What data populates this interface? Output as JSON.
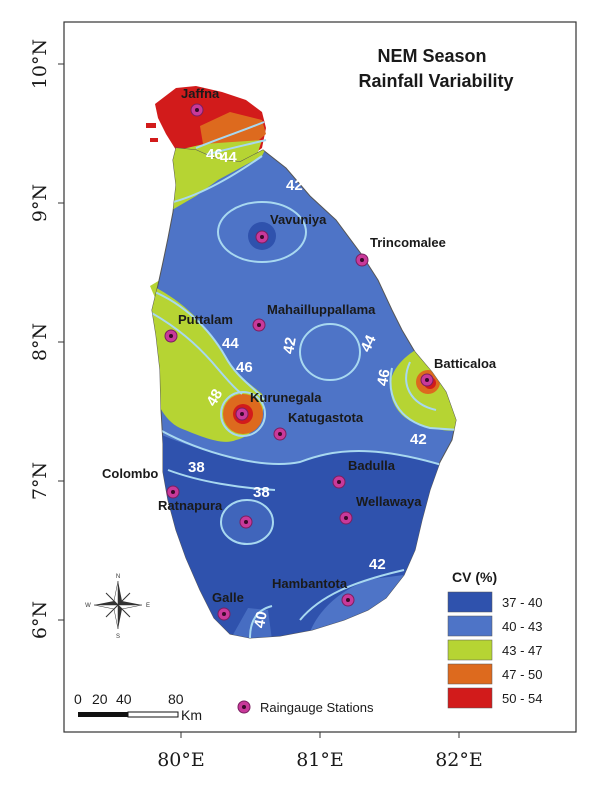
{
  "title": {
    "line1": "NEM Season",
    "line2": "Rainfall Variability"
  },
  "axes": {
    "lat_ticks": [
      {
        "label": "10°N",
        "lat": 10
      },
      {
        "label": "9°N",
        "lat": 9
      },
      {
        "label": "8°N",
        "lat": 8
      },
      {
        "label": "7°N",
        "lat": 7
      },
      {
        "label": "6°N",
        "lat": 6
      }
    ],
    "lon_ticks": [
      {
        "label": "80°E",
        "lon": 80
      },
      {
        "label": "81°E",
        "lon": 81
      },
      {
        "label": "82°E",
        "lon": 82
      }
    ]
  },
  "stations": [
    {
      "name": "Jaffna",
      "lon": 80.03,
      "lat": 9.67
    },
    {
      "name": "Vavuniya",
      "lon": 80.5,
      "lat": 8.75
    },
    {
      "name": "Trincomalee",
      "lon": 81.21,
      "lat": 8.59
    },
    {
      "name": "Mahailluppallama",
      "lon": 80.47,
      "lat": 8.12
    },
    {
      "name": "Puttalam",
      "lon": 79.84,
      "lat": 8.04
    },
    {
      "name": "Batticaloa",
      "lon": 81.68,
      "lat": 7.73
    },
    {
      "name": "Kurunegala",
      "lon": 80.37,
      "lat": 7.48
    },
    {
      "name": "Katugastota",
      "lon": 80.63,
      "lat": 7.33
    },
    {
      "name": "Colombo",
      "lon": 79.86,
      "lat": 6.92
    },
    {
      "name": "Badulla",
      "lon": 81.05,
      "lat": 6.99
    },
    {
      "name": "Ratnapura",
      "lon": 80.4,
      "lat": 6.71
    },
    {
      "name": "Wellawaya",
      "lon": 81.1,
      "lat": 6.74
    },
    {
      "name": "Hambantota",
      "lon": 81.12,
      "lat": 6.15
    },
    {
      "name": "Galle",
      "lon": 80.22,
      "lat": 6.05
    }
  ],
  "contour_labels": [
    "46",
    "44",
    "42",
    "44",
    "42",
    "44",
    "46",
    "46",
    "48",
    "42",
    "38",
    "38",
    "42",
    "40"
  ],
  "legend": {
    "title": "CV (%)",
    "items": [
      {
        "label": "37 - 40",
        "color": "#2f52ad"
      },
      {
        "label": "40 - 43",
        "color": "#4e74c7"
      },
      {
        "label": "43 - 47",
        "color": "#b6d433"
      },
      {
        "label": "47 - 50",
        "color": "#dd6a1e"
      },
      {
        "label": "50 - 54",
        "color": "#d21b1b"
      }
    ],
    "stations_label": "Raingauge Stations"
  },
  "scale_bar": {
    "ticks": [
      "0",
      "20",
      "40",
      "80"
    ],
    "unit": "Km"
  },
  "compass": {
    "n": "N",
    "s": "S",
    "e": "E",
    "w": "W"
  }
}
